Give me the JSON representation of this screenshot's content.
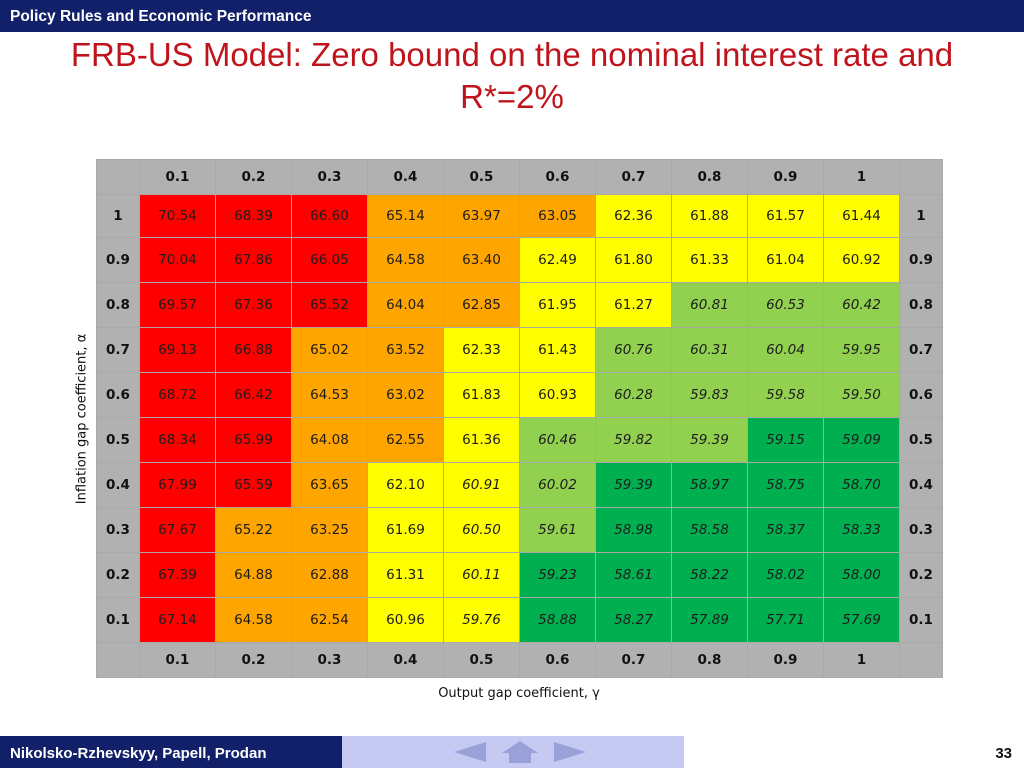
{
  "header": {
    "text": "Policy Rules and Economic Performance"
  },
  "title": "FRB-US Model: Zero bound on the nominal interest rate and R*=2%",
  "footer": {
    "authors": "Nikolsko-Rzhevskyy, Papell, Prodan",
    "page": "33"
  },
  "nav": {
    "prev": "previous-slide-icon",
    "home": "home-icon",
    "next": "next-slide-icon"
  },
  "colors": {
    "header_bar": "#12206a",
    "title": "#c0141c",
    "axis_header": "#b1b1b1",
    "red": "#ff0000",
    "orange": "#ffa500",
    "yellow": "#ffff00",
    "light_green": "#92d050",
    "green": "#00b050",
    "nav_box": "#c6c9f2"
  },
  "chart_data": {
    "type": "heatmap",
    "xlabel": "Output gap coefficient, γ",
    "ylabel": "Inflation gap coefficient, α",
    "x": [
      "0.1",
      "0.2",
      "0.3",
      "0.4",
      "0.5",
      "0.6",
      "0.7",
      "0.8",
      "0.9",
      "1"
    ],
    "y": [
      "1",
      "0.9",
      "0.8",
      "0.7",
      "0.6",
      "0.5",
      "0.4",
      "0.3",
      "0.2",
      "0.1"
    ],
    "values": [
      [
        "70.54",
        "68.39",
        "66.60",
        "65.14",
        "63.97",
        "63.05",
        "62.36",
        "61.88",
        "61.57",
        "61.44"
      ],
      [
        "70.04",
        "67.86",
        "66.05",
        "64.58",
        "63.40",
        "62.49",
        "61.80",
        "61.33",
        "61.04",
        "60.92"
      ],
      [
        "69.57",
        "67.36",
        "65.52",
        "64.04",
        "62.85",
        "61.95",
        "61.27",
        "60.81",
        "60.53",
        "60.42"
      ],
      [
        "69.13",
        "66.88",
        "65.02",
        "63.52",
        "62.33",
        "61.43",
        "60.76",
        "60.31",
        "60.04",
        "59.95"
      ],
      [
        "68.72",
        "66.42",
        "64.53",
        "63.02",
        "61.83",
        "60.93",
        "60.28",
        "59.83",
        "59.58",
        "59.50"
      ],
      [
        "68.34",
        "65.99",
        "64.08",
        "62.55",
        "61.36",
        "60.46",
        "59.82",
        "59.39",
        "59.15",
        "59.09"
      ],
      [
        "67.99",
        "65.59",
        "63.65",
        "62.10",
        "60.91",
        "60.02",
        "59.39",
        "58.97",
        "58.75",
        "58.70"
      ],
      [
        "67.67",
        "65.22",
        "63.25",
        "61.69",
        "60.50",
        "59.61",
        "58.98",
        "58.58",
        "58.37",
        "58.33"
      ],
      [
        "67.39",
        "64.88",
        "62.88",
        "61.31",
        "60.11",
        "59.23",
        "58.61",
        "58.22",
        "58.02",
        "58.00"
      ],
      [
        "67.14",
        "64.58",
        "62.54",
        "60.96",
        "59.76",
        "58.88",
        "58.27",
        "57.89",
        "57.71",
        "57.69"
      ]
    ],
    "cell_colors": [
      [
        "red",
        "red",
        "red",
        "orange",
        "orange",
        "orange",
        "yellow",
        "yellow",
        "yellow",
        "yellow"
      ],
      [
        "red",
        "red",
        "red",
        "orange",
        "orange",
        "yellow",
        "yellow",
        "yellow",
        "yellow",
        "yellow"
      ],
      [
        "red",
        "red",
        "red",
        "orange",
        "orange",
        "yellow",
        "yellow",
        "light_green",
        "light_green",
        "light_green"
      ],
      [
        "red",
        "red",
        "orange",
        "orange",
        "yellow",
        "yellow",
        "light_green",
        "light_green",
        "light_green",
        "light_green"
      ],
      [
        "red",
        "red",
        "orange",
        "orange",
        "yellow",
        "yellow",
        "light_green",
        "light_green",
        "light_green",
        "light_green"
      ],
      [
        "red",
        "red",
        "orange",
        "orange",
        "yellow",
        "light_green",
        "light_green",
        "light_green",
        "green",
        "green"
      ],
      [
        "red",
        "red",
        "orange",
        "yellow",
        "yellow",
        "light_green",
        "green",
        "green",
        "green",
        "green"
      ],
      [
        "red",
        "orange",
        "orange",
        "yellow",
        "yellow",
        "light_green",
        "green",
        "green",
        "green",
        "green"
      ],
      [
        "red",
        "orange",
        "orange",
        "yellow",
        "yellow",
        "green",
        "green",
        "green",
        "green",
        "green"
      ],
      [
        "red",
        "orange",
        "orange",
        "yellow",
        "yellow",
        "green",
        "green",
        "green",
        "green",
        "green"
      ]
    ],
    "italic": [
      [
        false,
        false,
        false,
        false,
        false,
        false,
        false,
        false,
        false,
        false
      ],
      [
        false,
        false,
        false,
        false,
        false,
        false,
        false,
        false,
        false,
        false
      ],
      [
        false,
        false,
        false,
        false,
        false,
        false,
        false,
        true,
        true,
        true
      ],
      [
        false,
        false,
        false,
        false,
        false,
        false,
        true,
        true,
        true,
        true
      ],
      [
        false,
        false,
        false,
        false,
        false,
        false,
        true,
        true,
        true,
        true
      ],
      [
        false,
        false,
        false,
        false,
        false,
        true,
        true,
        true,
        true,
        true
      ],
      [
        false,
        false,
        false,
        false,
        true,
        true,
        true,
        true,
        true,
        true
      ],
      [
        false,
        false,
        false,
        false,
        true,
        true,
        true,
        true,
        true,
        true
      ],
      [
        false,
        false,
        false,
        false,
        true,
        true,
        true,
        true,
        true,
        true
      ],
      [
        false,
        false,
        false,
        false,
        true,
        true,
        true,
        true,
        true,
        true
      ]
    ]
  }
}
